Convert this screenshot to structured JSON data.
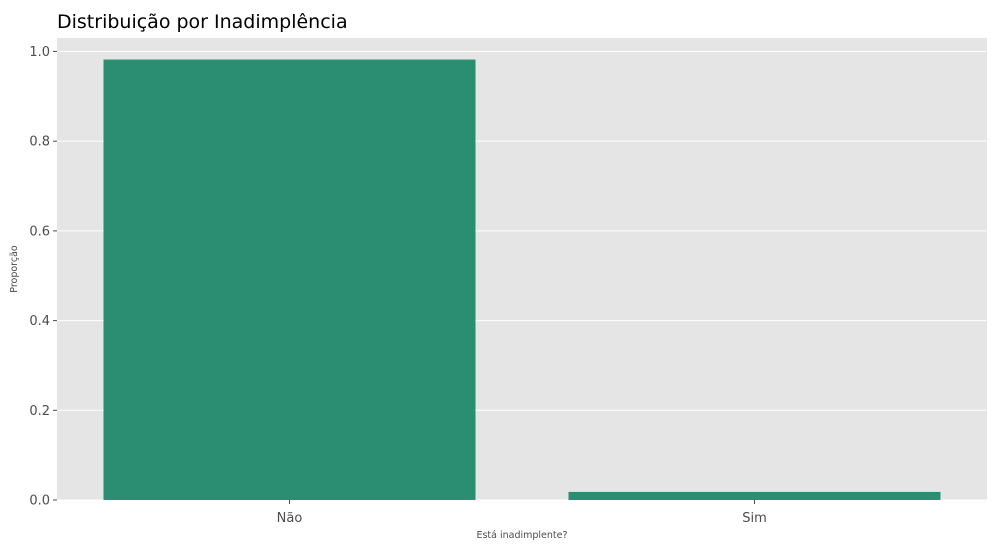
{
  "chart_data": {
    "type": "bar",
    "title": "Distribuição por Inadimplência",
    "xlabel": "Está inadimplente?",
    "ylabel": "Proporção",
    "categories": [
      "Não",
      "Sim"
    ],
    "values": [
      0.982,
      0.018
    ],
    "ylim": [
      0,
      1.03
    ],
    "yticks": [
      "0.0",
      "0.2",
      "0.4",
      "0.6",
      "0.8",
      "1.0"
    ],
    "grid": true,
    "legend": "none",
    "colors": {
      "bar": "#2b8e72",
      "plot_background": "#e5e5e5",
      "grid": "#ffffff"
    }
  }
}
